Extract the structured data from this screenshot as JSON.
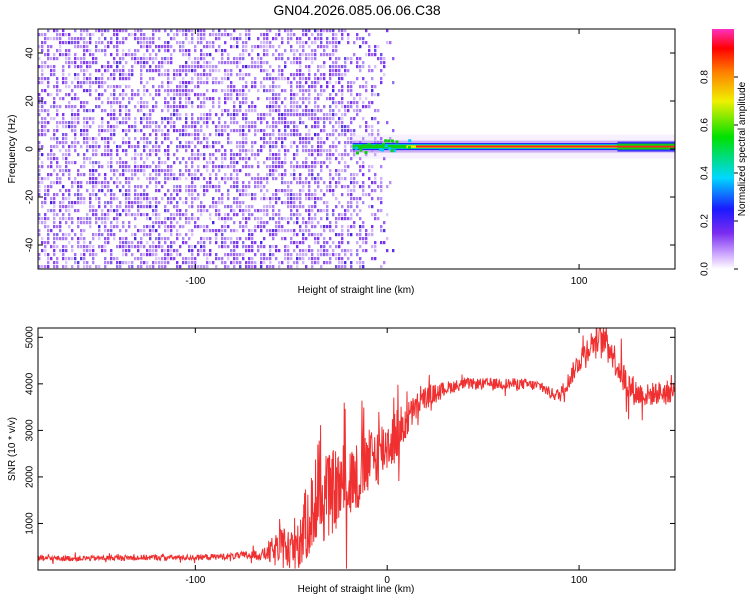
{
  "page": {
    "title": "GN04.2026.085.06.06.C38"
  },
  "colors": {
    "snr_line": "#f03030",
    "noise": "#7a2cf0",
    "axis": "#000000"
  },
  "chart_data": [
    {
      "type": "heatmap",
      "name": "spectrogram",
      "xlabel": "Height of straight line (km)",
      "ylabel": "Frequency (Hz)",
      "xlim": [
        -182,
        150
      ],
      "ylim": [
        -50,
        50
      ],
      "x_ticks": [
        -100,
        100
      ],
      "y_ticks": [
        -40,
        -20,
        0,
        20,
        40
      ],
      "noise_region_x": [
        -182,
        4
      ],
      "carrier_region_x": [
        -18,
        150
      ],
      "carrier_frequency_hz": 1,
      "colorbar": {
        "label": "Normalized spectral amplitude",
        "range": [
          0.0,
          1.0
        ],
        "ticks": [
          0.0,
          0.2,
          0.4,
          0.6,
          0.8
        ],
        "tick_labels": [
          "0.0",
          "0.2",
          "0.4",
          "0.6",
          "0.8"
        ]
      }
    },
    {
      "type": "line",
      "name": "snr",
      "xlabel": "Height of straight line (km)",
      "ylabel": "SNR (10 * v/v)",
      "xlim": [
        -182,
        150
      ],
      "ylim": [
        0,
        5200
      ],
      "x_ticks": [
        -100,
        0,
        100
      ],
      "y_ticks": [
        1000,
        2000,
        3000,
        4000,
        5000
      ],
      "series": [
        {
          "name": "SNR",
          "x": [
            -182,
            -160,
            -140,
            -120,
            -100,
            -80,
            -65,
            -60,
            -55,
            -50,
            -45,
            -40,
            -35,
            -30,
            -25,
            -20,
            -15,
            -10,
            -5,
            0,
            5,
            10,
            15,
            20,
            30,
            40,
            50,
            60,
            70,
            80,
            85,
            90,
            95,
            100,
            105,
            110,
            115,
            120,
            125,
            130,
            135,
            140,
            150
          ],
          "values": [
            250,
            250,
            260,
            270,
            270,
            300,
            330,
            400,
            450,
            500,
            700,
            1200,
            1400,
            1600,
            1800,
            1900,
            2000,
            2300,
            2500,
            2700,
            2900,
            3200,
            3500,
            3700,
            3900,
            4000,
            4000,
            4000,
            4000,
            3950,
            3800,
            3750,
            4100,
            4500,
            4800,
            5000,
            4900,
            4400,
            4000,
            3800,
            3750,
            3800,
            3850
          ],
          "noise_amplitude": [
            60,
            60,
            60,
            60,
            60,
            70,
            120,
            300,
            450,
            550,
            700,
            900,
            900,
            900,
            900,
            850,
            800,
            700,
            700,
            600,
            600,
            400,
            300,
            250,
            150,
            120,
            120,
            120,
            120,
            120,
            120,
            150,
            200,
            250,
            300,
            300,
            300,
            350,
            350,
            300,
            250,
            250,
            250
          ]
        }
      ]
    }
  ]
}
